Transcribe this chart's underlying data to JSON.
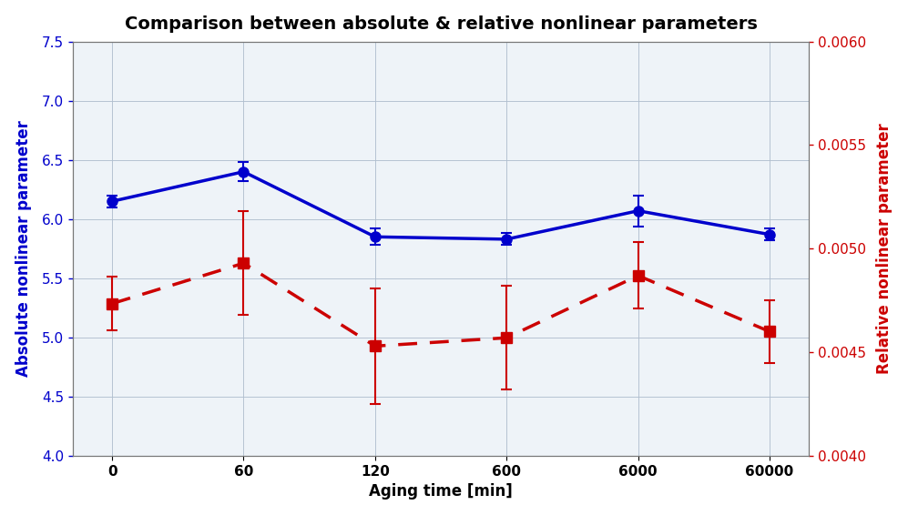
{
  "title": "Comparison between absolute & relative nonlinear parameters",
  "xlabel": "Aging time [min]",
  "ylabel_left": "Absolute nonlinear parameter",
  "ylabel_right": "Relative nonlinear parameter",
  "x_positions": [
    0,
    1,
    2,
    3,
    4,
    5
  ],
  "x_labels": [
    "0",
    "60",
    "120",
    "600",
    "6000",
    "60000"
  ],
  "blue_y": [
    6.15,
    6.4,
    5.85,
    5.83,
    6.07,
    5.87
  ],
  "blue_yerr": [
    0.05,
    0.08,
    0.07,
    0.05,
    0.13,
    0.05
  ],
  "red_y": [
    0.004735,
    0.00493,
    0.00453,
    0.00457,
    0.00487,
    0.0046
  ],
  "red_yerr": [
    0.00013,
    0.00025,
    0.00028,
    0.00025,
    0.00016,
    0.00015
  ],
  "blue_ylim": [
    4.0,
    7.5
  ],
  "red_ylim": [
    0.004,
    0.006
  ],
  "blue_yticks": [
    4.0,
    4.5,
    5.0,
    5.5,
    6.0,
    6.5,
    7.0,
    7.5
  ],
  "red_yticks": [
    0.004,
    0.0045,
    0.005,
    0.0055,
    0.006
  ],
  "blue_color": "#0000cc",
  "red_color": "#cc0000",
  "background_color": "#eef3f8",
  "grid_color": "#b0bece",
  "title_fontsize": 14,
  "label_fontsize": 12,
  "tick_fontsize": 11
}
